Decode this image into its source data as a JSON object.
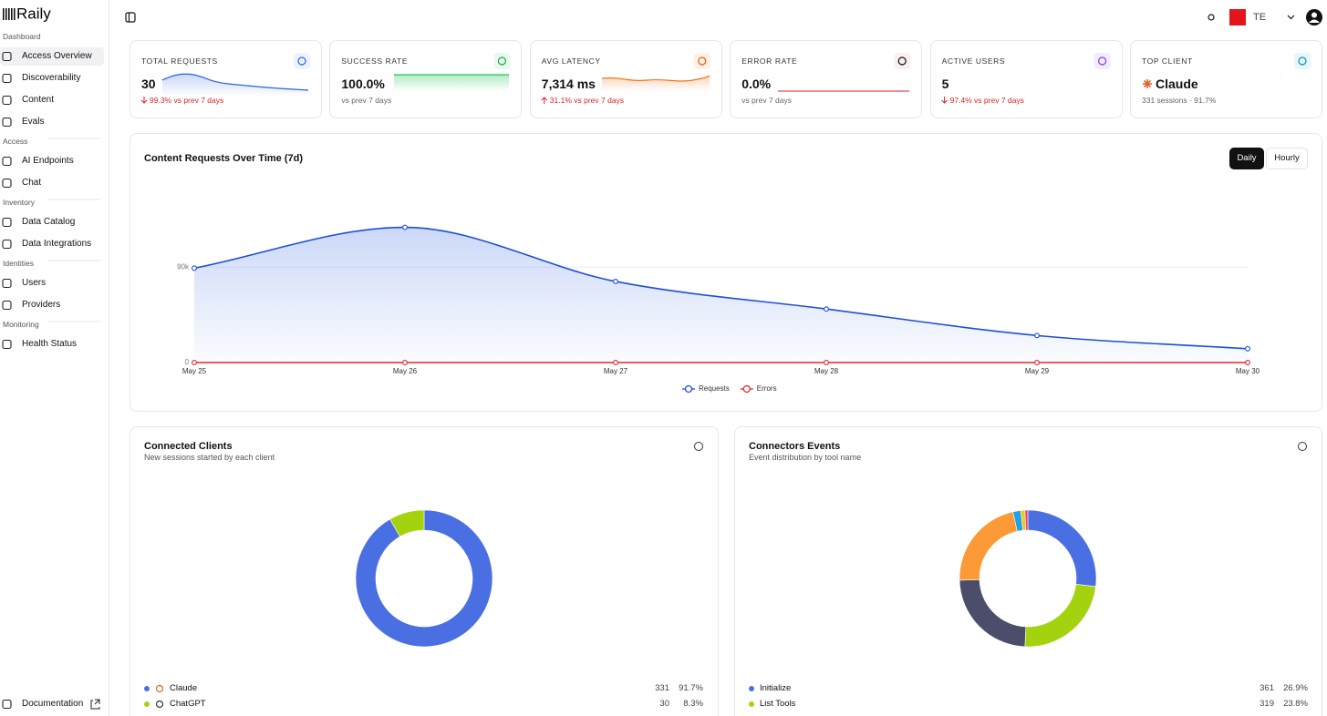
{
  "sidebar": {
    "brand": "Raily",
    "sections": [
      {
        "title": "Dashboard",
        "items": [
          "Access Overview",
          "Discoverability",
          "Content",
          "Evals"
        ]
      },
      {
        "title": "Access",
        "items": [
          "AI Endpoints",
          "Chat"
        ]
      },
      {
        "title": "Inventory",
        "items": [
          "Data Catalog",
          "Data Integrations"
        ]
      },
      {
        "title": "Identities",
        "items": [
          "Users",
          "Providers"
        ]
      },
      {
        "title": "Monitoring",
        "items": [
          "Health Status"
        ]
      }
    ],
    "footer": "Documentation"
  },
  "header": {
    "user": "TE"
  },
  "kpis": [
    {
      "label": "TOTAL REQUESTS",
      "value": "30",
      "delta": "99.3% vs prev 7 days",
      "trend": "down"
    },
    {
      "label": "SUCCESS RATE",
      "value": "100.0%",
      "delta": "vs prev 7 days"
    },
    {
      "label": "AVG LATENCY",
      "value": "7,314 ms",
      "delta": "31.1% vs prev 7 days",
      "trend": "up"
    },
    {
      "label": "ERROR RATE",
      "value": "0.0%",
      "delta": "vs prev 7 days"
    },
    {
      "label": "ACTIVE USERS",
      "value": "5",
      "delta": "97.4% vs prev 7 days",
      "trend": "down"
    },
    {
      "label": "TOP CLIENT",
      "value": "Claude",
      "delta": "331 sessions · 91.7%"
    }
  ],
  "chart_data": [
    {
      "type": "line",
      "title": "Content Requests Over Time (7d)",
      "controls": [
        "Daily",
        "Hourly"
      ],
      "categories": [
        "May 25",
        "May 26",
        "May 27",
        "May 28",
        "May 29",
        "May 30"
      ],
      "series": [
        {
          "name": "Requests",
          "color": "#1d4ed8",
          "values": [
            89000,
            127500,
            76500,
            50500,
            25500,
            13000
          ]
        },
        {
          "name": "Errors",
          "color": "#e5232f",
          "values": [
            0,
            0,
            0,
            0,
            0,
            0
          ]
        }
      ],
      "ylim": [
        0,
        140000
      ],
      "yticks": [
        0,
        {
          "value": 90000,
          "label": "90k"
        }
      ],
      "grid": true,
      "legend": "bottom"
    },
    {
      "type": "donut",
      "title": "Connected Clients",
      "subtitle": "New sessions started by each client",
      "categories": [
        "Claude",
        "ChatGPT"
      ],
      "values": [
        331,
        30
      ],
      "shares": [
        "91.7%",
        "8.3%"
      ],
      "colors": [
        "#4a6fe3",
        "#a5d20f"
      ]
    },
    {
      "type": "donut",
      "title": "Connectors Events",
      "subtitle": "Event distribution by tool name",
      "categories": [
        "Initialize",
        "List Tools",
        null,
        null,
        null,
        null,
        null
      ],
      "values": [
        361,
        319,
        321,
        294,
        25,
        13,
        9
      ],
      "shares": [
        "26.9%",
        "23.8%",
        null,
        null,
        null,
        null,
        null
      ],
      "colors": [
        "#4a6fe3",
        "#a5d20f",
        "#4b4d6b",
        "#fb9a36",
        "#1fa3e0",
        "#f5c518",
        "#e0457b"
      ]
    }
  ]
}
